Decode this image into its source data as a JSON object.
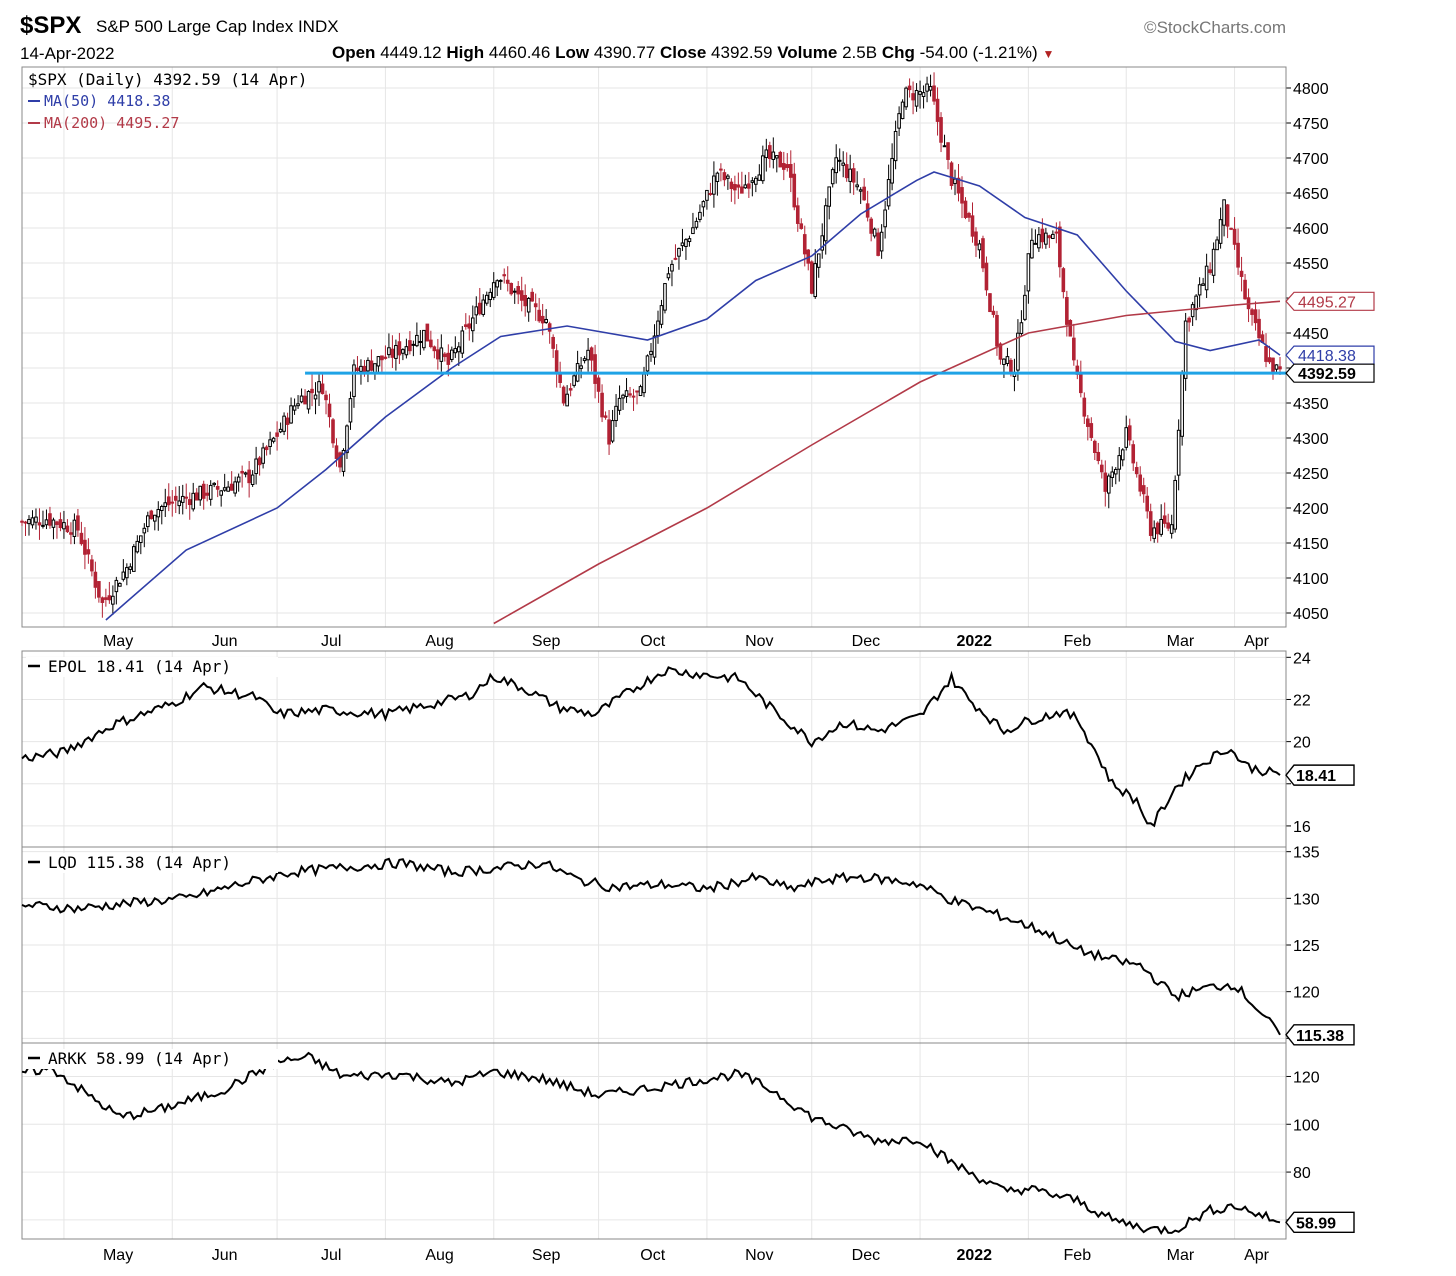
{
  "header": {
    "symbol": "$SPX",
    "name": "S&P 500 Large Cap Index",
    "exchange": "INDX",
    "brand": "©StockCharts.com",
    "date": "14-Apr-2022",
    "open_label": "Open",
    "open": "4449.12",
    "high_label": "High",
    "high": "4460.46",
    "low_label": "Low",
    "low": "4390.77",
    "close_label": "Close",
    "close": "4392.59",
    "volume_label": "Volume",
    "volume": "2.5B",
    "chg_label": "Chg",
    "chg": "-54.00 (-1.21%)"
  },
  "colors": {
    "up_candle": "#000000",
    "down_candle": "#b22234",
    "ma50": "#2f3ea8",
    "ma200": "#b23a48",
    "support_line": "#1fa3e6",
    "grid": "#e6e6e6",
    "line_series": "#000000"
  },
  "chart_data": [
    {
      "type": "candlestick",
      "legend": {
        "price": "$SPX (Daily) 4392.59 (14 Apr)",
        "ma50": "MA(50) 4418.38",
        "ma200": "MA(200) 4495.27"
      },
      "x_labels": [
        "May",
        "Jun",
        "Jul",
        "Aug",
        "Sep",
        "Oct",
        "Nov",
        "Dec",
        "2022",
        "Feb",
        "Mar",
        "Apr"
      ],
      "y_ticks": [
        4050,
        4100,
        4150,
        4200,
        4250,
        4300,
        4350,
        4400,
        4450,
        4500,
        4550,
        4600,
        4650,
        4700,
        4750,
        4800
      ],
      "y_tick_labels": [
        "4050",
        "4100",
        "4150",
        "4200",
        "4250",
        "4300",
        "4350",
        "",
        "4450",
        "",
        "4550",
        "4600",
        "4650",
        "4700",
        "4750",
        "4800"
      ],
      "ylim": [
        4030,
        4830
      ],
      "close_points": [
        [
          "2021-04-19",
          4180
        ],
        [
          "2021-04-26",
          4185
        ],
        [
          "2021-05-05",
          4170
        ],
        [
          "2021-05-12",
          4063
        ],
        [
          "2021-05-19",
          4115
        ],
        [
          "2021-05-26",
          4195
        ],
        [
          "2021-06-02",
          4210
        ],
        [
          "2021-06-09",
          4220
        ],
        [
          "2021-06-16",
          4230
        ],
        [
          "2021-06-23",
          4245
        ],
        [
          "2021-06-30",
          4297
        ],
        [
          "2021-07-07",
          4355
        ],
        [
          "2021-07-14",
          4375
        ],
        [
          "2021-07-19",
          4258
        ],
        [
          "2021-07-23",
          4395
        ],
        [
          "2021-08-03",
          4420
        ],
        [
          "2021-08-12",
          4450
        ],
        [
          "2021-08-19",
          4405
        ],
        [
          "2021-08-26",
          4470
        ],
        [
          "2021-09-02",
          4535
        ],
        [
          "2021-09-09",
          4495
        ],
        [
          "2021-09-16",
          4470
        ],
        [
          "2021-09-21",
          4355
        ],
        [
          "2021-09-28",
          4425
        ],
        [
          "2021-10-04",
          4300
        ],
        [
          "2021-10-07",
          4355
        ],
        [
          "2021-10-13",
          4362
        ],
        [
          "2021-10-21",
          4540
        ],
        [
          "2021-10-28",
          4600
        ],
        [
          "2021-11-04",
          4680
        ],
        [
          "2021-11-10",
          4650
        ],
        [
          "2021-11-18",
          4700
        ],
        [
          "2021-11-24",
          4690
        ],
        [
          "2021-12-01",
          4515
        ],
        [
          "2021-12-08",
          4700
        ],
        [
          "2021-12-15",
          4655
        ],
        [
          "2021-12-20",
          4570
        ],
        [
          "2021-12-27",
          4790
        ],
        [
          "2022-01-04",
          4795
        ],
        [
          "2022-01-10",
          4670
        ],
        [
          "2022-01-18",
          4575
        ],
        [
          "2022-01-24",
          4410
        ],
        [
          "2022-01-28",
          4400
        ],
        [
          "2022-02-02",
          4590
        ],
        [
          "2022-02-09",
          4585
        ],
        [
          "2022-02-14",
          4400
        ],
        [
          "2022-02-23",
          4225
        ],
        [
          "2022-03-01",
          4305
        ],
        [
          "2022-03-08",
          4170
        ],
        [
          "2022-03-14",
          4175
        ],
        [
          "2022-03-18",
          4465
        ],
        [
          "2022-03-25",
          4545
        ],
        [
          "2022-03-29",
          4630
        ],
        [
          "2022-04-05",
          4480
        ],
        [
          "2022-04-11",
          4405
        ],
        [
          "2022-04-14",
          4392.59
        ]
      ],
      "ma50_points": [
        [
          "2021-05-13",
          4040
        ],
        [
          "2021-06-05",
          4140
        ],
        [
          "2021-07-01",
          4200
        ],
        [
          "2021-07-15",
          4255
        ],
        [
          "2021-08-01",
          4330
        ],
        [
          "2021-08-20",
          4400
        ],
        [
          "2021-09-03",
          4445
        ],
        [
          "2021-09-22",
          4460
        ],
        [
          "2021-10-15",
          4440
        ],
        [
          "2021-11-01",
          4470
        ],
        [
          "2021-11-15",
          4525
        ],
        [
          "2021-12-01",
          4560
        ],
        [
          "2021-12-15",
          4620
        ],
        [
          "2021-12-31",
          4668
        ],
        [
          "2022-01-05",
          4680
        ],
        [
          "2022-01-18",
          4660
        ],
        [
          "2022-01-31",
          4615
        ],
        [
          "2022-02-15",
          4590
        ],
        [
          "2022-03-01",
          4510
        ],
        [
          "2022-03-15",
          4438
        ],
        [
          "2022-03-25",
          4425
        ],
        [
          "2022-04-08",
          4440
        ],
        [
          "2022-04-14",
          4418.38
        ]
      ],
      "ma200_points": [
        [
          "2021-09-01",
          4035
        ],
        [
          "2021-10-01",
          4120
        ],
        [
          "2021-11-01",
          4200
        ],
        [
          "2021-12-01",
          4290
        ],
        [
          "2022-01-01",
          4380
        ],
        [
          "2022-02-01",
          4450
        ],
        [
          "2022-03-01",
          4475
        ],
        [
          "2022-04-01",
          4490
        ],
        [
          "2022-04-14",
          4495.27
        ]
      ],
      "support_level": 4392.59,
      "support_from": "2021-07-09",
      "price_tags": [
        {
          "label": "4495.27",
          "value": 4495.27,
          "style": "ma200"
        },
        {
          "label": "4418.38",
          "value": 4418.38,
          "style": "ma50"
        },
        {
          "label": "4392.59",
          "value": 4392.59,
          "style": "last"
        }
      ]
    },
    {
      "type": "line",
      "legend": "EPOL 18.41 (14 Apr)",
      "y_ticks": [
        16,
        18,
        20,
        22,
        24
      ],
      "y_tick_labels": [
        "16",
        "",
        "20",
        "22",
        "24"
      ],
      "ylim": [
        15,
        24.3
      ],
      "last_label": "18.41",
      "points": [
        [
          "2021-04-19",
          19.2
        ],
        [
          "2021-05-01",
          19.5
        ],
        [
          "2021-05-15",
          20.8
        ],
        [
          "2021-06-01",
          21.8
        ],
        [
          "2021-06-10",
          22.6
        ],
        [
          "2021-06-25",
          22.1
        ],
        [
          "2021-07-01",
          21.3
        ],
        [
          "2021-07-15",
          21.5
        ],
        [
          "2021-08-01",
          21.3
        ],
        [
          "2021-08-15",
          21.8
        ],
        [
          "2021-08-25",
          22.2
        ],
        [
          "2021-09-01",
          23.1
        ],
        [
          "2021-09-10",
          22.5
        ],
        [
          "2021-09-20",
          21.6
        ],
        [
          "2021-09-30",
          21.3
        ],
        [
          "2021-10-10",
          22.4
        ],
        [
          "2021-10-20",
          23.4
        ],
        [
          "2021-10-30",
          23.2
        ],
        [
          "2021-11-10",
          23.0
        ],
        [
          "2021-11-20",
          21.5
        ],
        [
          "2021-12-01",
          20.0
        ],
        [
          "2021-12-10",
          20.9
        ],
        [
          "2021-12-20",
          20.5
        ],
        [
          "2022-01-01",
          21.2
        ],
        [
          "2022-01-10",
          23.0
        ],
        [
          "2022-01-15",
          22.0
        ],
        [
          "2022-01-25",
          20.5
        ],
        [
          "2022-02-01",
          21.0
        ],
        [
          "2022-02-10",
          21.4
        ],
        [
          "2022-02-15",
          21.1
        ],
        [
          "2022-02-20",
          19.6
        ],
        [
          "2022-02-25",
          18.0
        ],
        [
          "2022-03-04",
          17.2
        ],
        [
          "2022-03-08",
          15.9
        ],
        [
          "2022-03-15",
          17.8
        ],
        [
          "2022-03-22",
          18.9
        ],
        [
          "2022-03-30",
          19.7
        ],
        [
          "2022-04-05",
          18.8
        ],
        [
          "2022-04-14",
          18.41
        ]
      ]
    },
    {
      "type": "line",
      "legend": "LQD 115.38 (14 Apr)",
      "y_ticks": [
        115,
        120,
        125,
        130,
        135
      ],
      "y_tick_labels": [
        "",
        "120",
        "125",
        "130",
        "135"
      ],
      "ylim": [
        114.5,
        135.5
      ],
      "last_label": "115.38",
      "points": [
        [
          "2021-04-19",
          129.3
        ],
        [
          "2021-05-05",
          128.9
        ],
        [
          "2021-05-20",
          129.5
        ],
        [
          "2021-06-05",
          130.0
        ],
        [
          "2021-06-20",
          131.5
        ],
        [
          "2021-07-05",
          132.8
        ],
        [
          "2021-07-20",
          133.3
        ],
        [
          "2021-08-05",
          133.8
        ],
        [
          "2021-08-20",
          132.8
        ],
        [
          "2021-09-01",
          133.2
        ],
        [
          "2021-09-15",
          133.8
        ],
        [
          "2021-09-25",
          132.0
        ],
        [
          "2021-10-05",
          131.2
        ],
        [
          "2021-10-20",
          131.5
        ],
        [
          "2021-11-01",
          131.0
        ],
        [
          "2021-11-15",
          132.2
        ],
        [
          "2021-11-25",
          131.0
        ],
        [
          "2021-12-05",
          132.0
        ],
        [
          "2021-12-15",
          132.3
        ],
        [
          "2021-12-31",
          131.6
        ],
        [
          "2022-01-10",
          129.8
        ],
        [
          "2022-01-25",
          128.0
        ],
        [
          "2022-02-05",
          126.5
        ],
        [
          "2022-02-15",
          124.5
        ],
        [
          "2022-02-25",
          123.4
        ],
        [
          "2022-03-05",
          122.8
        ],
        [
          "2022-03-15",
          119.5
        ],
        [
          "2022-03-25",
          120.5
        ],
        [
          "2022-04-01",
          120.8
        ],
        [
          "2022-04-08",
          118.0
        ],
        [
          "2022-04-14",
          115.38
        ]
      ]
    },
    {
      "type": "line",
      "legend": "ARKK 58.99 (14 Apr)",
      "y_ticks": [
        60,
        80,
        100,
        120
      ],
      "y_tick_labels": [
        "",
        "80",
        "100",
        "120"
      ],
      "ylim": [
        52,
        134
      ],
      "last_label": "58.99",
      "points": [
        [
          "2021-04-19",
          122
        ],
        [
          "2021-04-28",
          123
        ],
        [
          "2021-05-10",
          110
        ],
        [
          "2021-05-17",
          103
        ],
        [
          "2021-05-28",
          106
        ],
        [
          "2021-06-15",
          114
        ],
        [
          "2021-07-01",
          126
        ],
        [
          "2021-07-10",
          128
        ],
        [
          "2021-07-20",
          120
        ],
        [
          "2021-08-05",
          121
        ],
        [
          "2021-08-20",
          117
        ],
        [
          "2021-09-01",
          122
        ],
        [
          "2021-09-15",
          119
        ],
        [
          "2021-10-01",
          112
        ],
        [
          "2021-10-15",
          115
        ],
        [
          "2021-11-01",
          119
        ],
        [
          "2021-11-10",
          121
        ],
        [
          "2021-11-20",
          114
        ],
        [
          "2021-12-01",
          103
        ],
        [
          "2021-12-10",
          98
        ],
        [
          "2021-12-20",
          93
        ],
        [
          "2022-01-01",
          94
        ],
        [
          "2022-01-10",
          84
        ],
        [
          "2022-01-25",
          72
        ],
        [
          "2022-02-01",
          73
        ],
        [
          "2022-02-15",
          68
        ],
        [
          "2022-02-25",
          60
        ],
        [
          "2022-03-08",
          56
        ],
        [
          "2022-03-15",
          56
        ],
        [
          "2022-03-25",
          64
        ],
        [
          "2022-04-01",
          66
        ],
        [
          "2022-04-14",
          58.99
        ]
      ]
    }
  ]
}
